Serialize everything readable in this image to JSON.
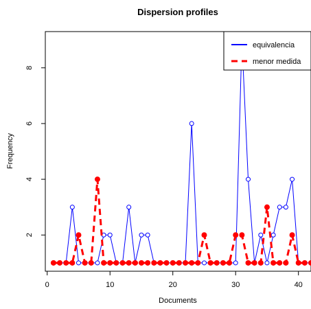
{
  "chart_data": {
    "type": "line",
    "title": "Dispersion profiles",
    "xlabel": "Documents",
    "ylabel": "Frequency",
    "xlim": [
      -0.3,
      42
    ],
    "ylim": [
      0.7,
      9.3
    ],
    "xticks": [
      0,
      10,
      20,
      30,
      40
    ],
    "yticks": [
      2,
      4,
      6,
      8
    ],
    "grid": false,
    "legend_position": "top-right",
    "x": [
      1,
      2,
      3,
      4,
      5,
      6,
      7,
      8,
      9,
      10,
      11,
      12,
      13,
      14,
      15,
      16,
      17,
      18,
      19,
      20,
      21,
      22,
      23,
      24,
      25,
      26,
      27,
      28,
      29,
      30,
      31,
      32,
      33,
      34,
      35,
      36,
      37,
      38,
      39,
      40,
      41,
      42
    ],
    "series": [
      {
        "name": "equivalencia",
        "color": "#0000ff",
        "line_style": "solid",
        "marker": "open-circle",
        "values": [
          1,
          1,
          1,
          3,
          1,
          1,
          1,
          1,
          2,
          2,
          1,
          1,
          3,
          1,
          2,
          2,
          1,
          1,
          1,
          1,
          1,
          1,
          6,
          1,
          1,
          1,
          1,
          1,
          1,
          1,
          9,
          4,
          1,
          2,
          1,
          2,
          3,
          3,
          4,
          1,
          1,
          1
        ]
      },
      {
        "name": "menor medida",
        "color": "#ff0000",
        "line_style": "dashed",
        "marker": "filled-circle",
        "values": [
          1,
          1,
          1,
          1,
          2,
          1,
          1,
          4,
          1,
          1,
          1,
          1,
          1,
          1,
          1,
          1,
          1,
          1,
          1,
          1,
          1,
          1,
          1,
          1,
          2,
          1,
          1,
          1,
          1,
          2,
          2,
          1,
          1,
          1,
          3,
          1,
          1,
          1,
          2,
          1,
          1,
          1
        ]
      }
    ]
  }
}
